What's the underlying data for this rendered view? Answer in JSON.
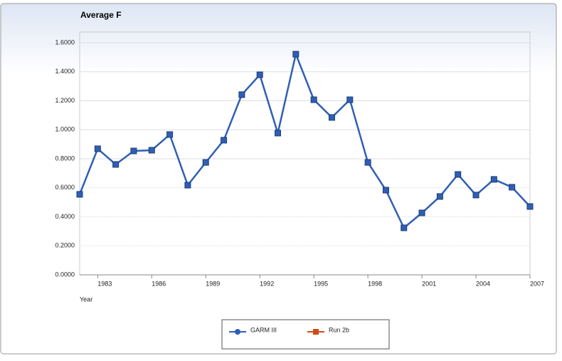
{
  "chart_data": {
    "type": "line",
    "title": "Average F",
    "x_label": "Year",
    "x": [
      1982,
      1983,
      1984,
      1985,
      1986,
      1987,
      1988,
      1989,
      1990,
      1991,
      1992,
      1993,
      1994,
      1995,
      1996,
      1997,
      1998,
      1999,
      2000,
      2001,
      2002,
      2003,
      2004,
      2005,
      2006,
      2007
    ],
    "series": [
      {
        "name": "GARM III",
        "color": "#2f5fb3",
        "values": [
          0.555,
          0.869,
          0.761,
          0.854,
          0.859,
          0.967,
          0.618,
          0.775,
          0.928,
          1.242,
          1.379,
          0.977,
          1.521,
          1.207,
          1.085,
          1.207,
          0.775,
          0.584,
          0.324,
          0.427,
          0.54,
          0.692,
          0.55,
          0.658,
          0.604,
          0.471
        ]
      }
    ],
    "legend": [
      {
        "name": "GARM III",
        "color": "#2f5fb3",
        "marker": "circle"
      },
      {
        "name": "Run 2b",
        "color": "#d04a1a",
        "marker": "square"
      }
    ],
    "xlim": [
      1982,
      2007
    ],
    "xticks": [
      1983,
      1986,
      1989,
      1992,
      1995,
      1998,
      2001,
      2004,
      2007
    ],
    "ylim": [
      0,
      1.6
    ],
    "yticks": [
      {
        "value": 0,
        "label": "0.0000"
      },
      {
        "value": 0.2,
        "label": "0.2000"
      },
      {
        "value": 0.4,
        "label": "0.4000"
      },
      {
        "value": 0.6,
        "label": "0.6000"
      },
      {
        "value": 0.8,
        "label": "0.8000"
      },
      {
        "value": 1.0,
        "label": "1.0000"
      },
      {
        "value": 1.2,
        "label": "1.2000"
      },
      {
        "value": 1.4,
        "label": "1.4000"
      },
      {
        "value": 1.6,
        "label": "1.6000"
      }
    ],
    "grid": true
  }
}
